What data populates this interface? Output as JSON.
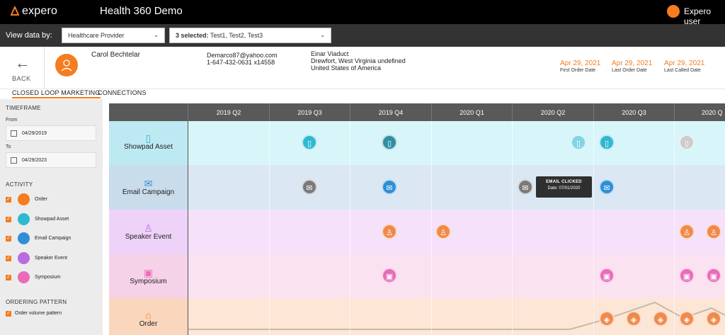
{
  "app": {
    "logo": "expero",
    "title": "Health 360 Demo",
    "user": "Expero user"
  },
  "filters": {
    "label": "View data by:",
    "provider": "Healthcare Provider",
    "tests_count": "3 selected:",
    "tests": " Test1, Test2, Test3"
  },
  "patient": {
    "back": "BACK",
    "name": "Carol Bechtelar",
    "email": "Demarco87@yahoo.com",
    "phone": "1-647-432-0631 x14558",
    "address": [
      "Einar Viaduct",
      "Drewfort, West Virginia undefined",
      "United States of America"
    ],
    "dates": [
      {
        "value": "Apr 29, 2021",
        "label": "First Order Date"
      },
      {
        "value": "Apr 29, 2021",
        "label": "Last Order Date"
      },
      {
        "value": "Apr 29, 2021",
        "label": "Last Called Date"
      }
    ]
  },
  "tabs": [
    "CLOSED LOOP MARKETING",
    "CONNECTIONS"
  ],
  "sidebar": {
    "timeframe": "TIMEFRAME",
    "from_label": "From",
    "from_value": "04/29/2019",
    "to_label": "To",
    "to_value": "04/29/2023",
    "activity": "ACTIVITY",
    "activities": [
      "Order",
      "Showpad Asset",
      "Email Campaign",
      "Speaker Event",
      "Symposium"
    ],
    "ordering": "ORDERING PATTERN",
    "ordering_option": "Order volume pattern"
  },
  "timeline": {
    "quarters": [
      "2019 Q2",
      "2019 Q3",
      "2019 Q4",
      "2020 Q1",
      "2020 Q2",
      "2020 Q3",
      "2020 Q"
    ],
    "rows": [
      "Showpad Asset",
      "Email Campaign",
      "Speaker Event",
      "Symposium",
      "Order"
    ],
    "tooltip_title": "EMAIL CLICKED",
    "tooltip_date": "Date: 07/01/2020"
  },
  "colors": {
    "accent": "#f57c1f",
    "showpad": "#2fb8cf",
    "email": "#2e8fd6",
    "speaker": "#f08a4b",
    "symposium": "#e96bb9"
  },
  "icons": [
    "tablet-icon",
    "envelope-icon",
    "podium-icon",
    "badge-icon",
    "tag-icon",
    "calendar-icon",
    "arrow-left-icon",
    "chevron-down-icon"
  ]
}
